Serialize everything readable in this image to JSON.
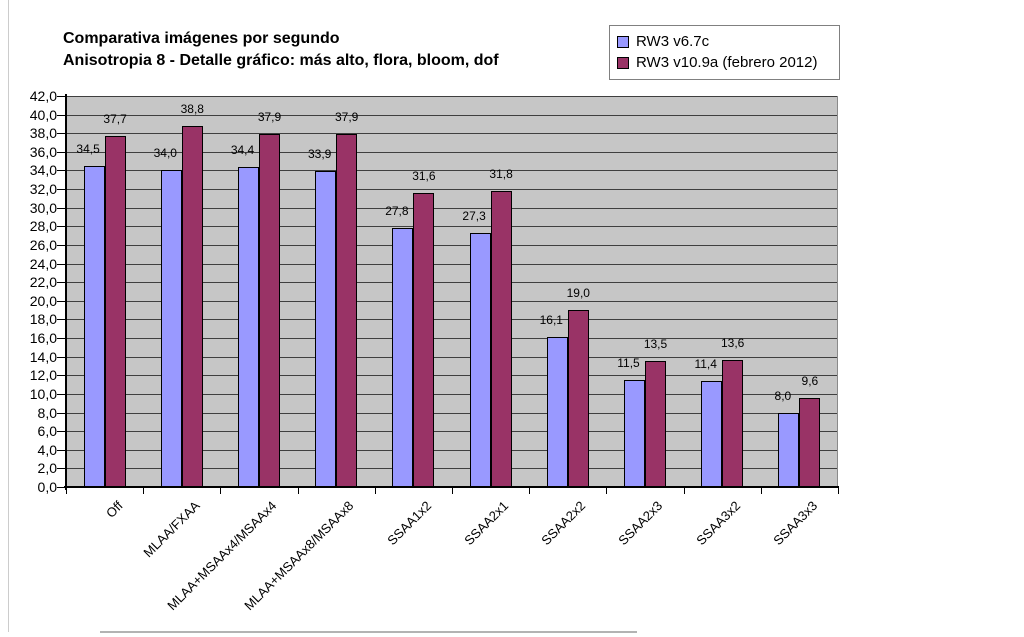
{
  "chart_data": {
    "type": "bar",
    "title_line1": "Comparativa imágenes por segundo",
    "title_line2": "Anisotropia 8 - Detalle gráfico: más alto, flora, bloom, dof",
    "categories": [
      "Off",
      "MLAA/FXAA",
      "MLAA+MSAAx4/MSAAx4",
      "MLAA+MSAAx8/MSAAx8",
      "SSAA1x2",
      "SSAA2x1",
      "SSAA2x2",
      "SSAA2x3",
      "SSAA3x2",
      "SSAA3x3"
    ],
    "series": [
      {
        "name": "RW3 v6.7c",
        "color": "#9999FF",
        "values": [
          34.5,
          34.0,
          34.4,
          33.9,
          27.8,
          27.3,
          16.1,
          11.5,
          11.4,
          8.0
        ]
      },
      {
        "name": "RW3 v10.9a (febrero 2012)",
        "color": "#993366",
        "values": [
          37.7,
          38.8,
          37.9,
          37.9,
          31.6,
          31.8,
          19.0,
          13.5,
          13.6,
          9.6
        ]
      }
    ],
    "ylim": [
      0,
      42
    ],
    "ytick_step": 2,
    "decimal_separator": ",",
    "value_decimals": 1,
    "grid": true,
    "legend_position": "top-right",
    "xlabel": "",
    "ylabel": "",
    "colors": {
      "plot_background": "#c6c6c6",
      "gridline": "#3f3f3f",
      "axis": "#000000",
      "bar_border": "#000000",
      "legend_border": "#808080",
      "page_background": "#ffffff"
    }
  }
}
